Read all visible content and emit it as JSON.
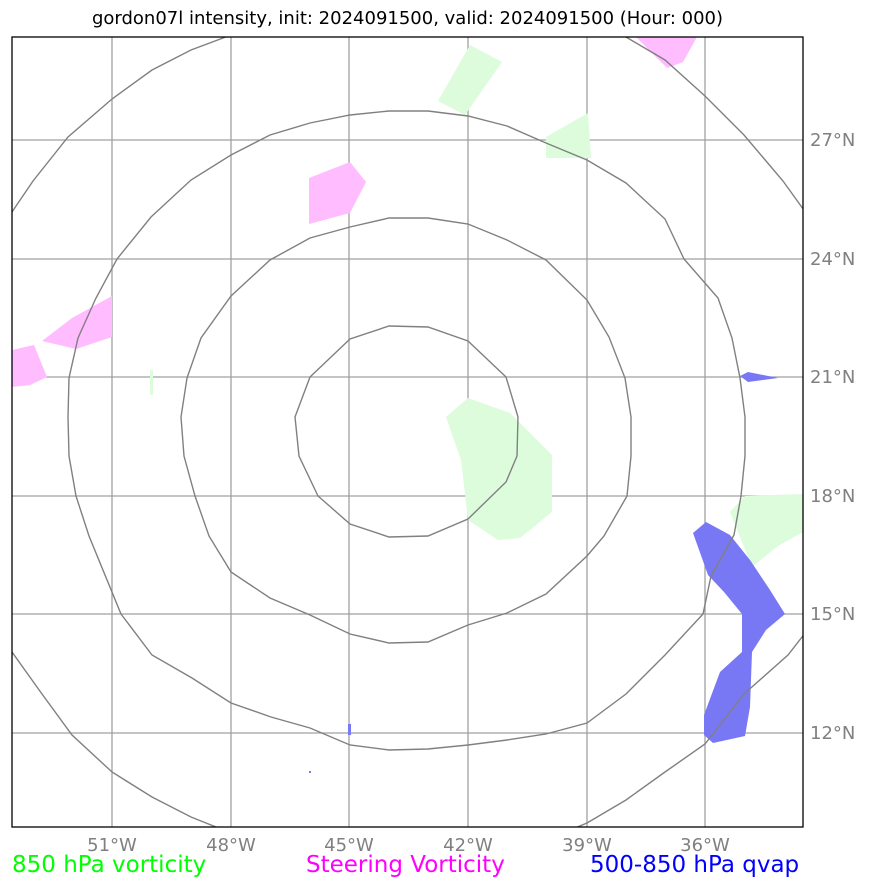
{
  "title": "gordon07l intensity, init: 2024091500, valid: 2024091500 (Hour: 000)",
  "legend": {
    "green": {
      "label": "850 hPa vorticity",
      "color": "#00ff00"
    },
    "magenta": {
      "label": "Steering Vorticity",
      "color": "#ff00ff"
    },
    "blue": {
      "label": "500-850 hPa qvap",
      "color": "#0000ff"
    }
  },
  "map": {
    "lon_range": [
      -53.5,
      -33.5
    ],
    "lat_range": [
      9.7,
      29.7
    ],
    "lon_ticks": [
      -51,
      -48,
      -45,
      -42,
      -39,
      -36
    ],
    "lon_tick_labels": [
      "51°W",
      "48°W",
      "45°W",
      "42°W",
      "39°W",
      "36°W"
    ],
    "lat_ticks": [
      12,
      15,
      18,
      21,
      24,
      27
    ],
    "lat_tick_labels": [
      "12°N",
      "15°N",
      "18°N",
      "21°N",
      "24°N",
      "27°N"
    ],
    "grid": true,
    "range_rings_center": [
      -43.0,
      19.5
    ],
    "range_rings_count": 4,
    "colors": {
      "grid": "#a0a0a0",
      "rings": "#808080",
      "tick_labels": "#808080",
      "green_fill": "#dcfcdc",
      "magenta_fill": "#ffbcff",
      "blue_fill": "#7878f4"
    }
  }
}
